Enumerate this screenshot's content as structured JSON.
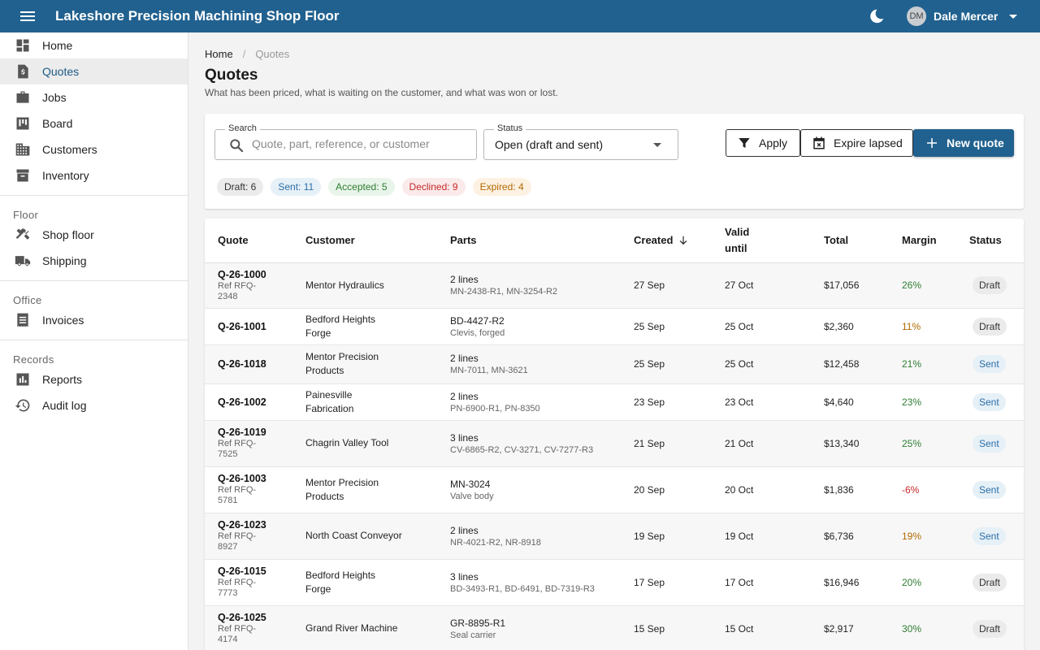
{
  "app": {
    "title": "Lakeshore Precision Machining Shop Floor"
  },
  "user": {
    "initials": "DM",
    "name": "Dale Mercer"
  },
  "sidebar": {
    "main_items": [
      {
        "label": "Home",
        "icon": "dashboard-icon"
      },
      {
        "label": "Quotes",
        "icon": "quote-document-icon",
        "active": true
      },
      {
        "label": "Jobs",
        "icon": "briefcase-icon"
      },
      {
        "label": "Board",
        "icon": "kanban-board-icon"
      },
      {
        "label": "Customers",
        "icon": "building-icon"
      },
      {
        "label": "Inventory",
        "icon": "archive-box-icon"
      }
    ],
    "sections": [
      {
        "title": "Floor",
        "items": [
          {
            "label": "Shop floor",
            "icon": "tools-icon"
          },
          {
            "label": "Shipping",
            "icon": "truck-icon"
          }
        ]
      },
      {
        "title": "Office",
        "items": [
          {
            "label": "Invoices",
            "icon": "receipt-icon"
          }
        ]
      },
      {
        "title": "Records",
        "items": [
          {
            "label": "Reports",
            "icon": "bar-chart-icon"
          },
          {
            "label": "Audit log",
            "icon": "history-icon"
          }
        ]
      }
    ]
  },
  "breadcrumb": {
    "home": "Home",
    "separator": "/",
    "current": "Quotes"
  },
  "page": {
    "title": "Quotes",
    "subtitle": "What has been priced, what is waiting on the customer, and what was won or lost."
  },
  "filters": {
    "search_label": "Search",
    "search_placeholder": "Quote, part, reference, or customer",
    "search_value": "",
    "status_label": "Status",
    "status_value": "Open (draft and sent)",
    "apply_label": "Apply",
    "expire_label": "Expire lapsed",
    "new_label": "New quote"
  },
  "chips": [
    {
      "label": "Draft: 6",
      "bg": "#ebebeb",
      "color": "#333333"
    },
    {
      "label": "Sent: 11",
      "bg": "#e6f0f7",
      "color": "#2b6fa8"
    },
    {
      "label": "Accepted: 5",
      "bg": "#e9f5ea",
      "color": "#2e7d32"
    },
    {
      "label": "Declined: 9",
      "bg": "#fbeaea",
      "color": "#c62828"
    },
    {
      "label": "Expired: 4",
      "bg": "#fdf1e2",
      "color": "#b26a00"
    }
  ],
  "table": {
    "columns": [
      "Quote",
      "Customer",
      "Parts",
      "Created",
      "Valid until",
      "Total",
      "Margin",
      "Status"
    ],
    "rows": [
      {
        "quote": "Q-26-1000",
        "ref": "Ref RFQ-2348",
        "customer": "Mentor Hydraulics",
        "parts": "2 lines",
        "parts_sub": "MN-2438-R1, MN-3254-R2",
        "created": "27 Sep",
        "valid": "27 Oct",
        "total": "$17,056",
        "margin": "26%",
        "margin_color": "#2e7d32",
        "status": "Draft"
      },
      {
        "quote": "Q-26-1001",
        "ref": "",
        "customer": "Bedford Heights Forge",
        "parts": "BD-4427-R2",
        "parts_sub": "Clevis, forged",
        "created": "25 Sep",
        "valid": "25 Oct",
        "total": "$2,360",
        "margin": "11%",
        "margin_color": "#b26a00",
        "status": "Draft"
      },
      {
        "quote": "Q-26-1018",
        "ref": "",
        "customer": "Mentor Precision Products",
        "parts": "2 lines",
        "parts_sub": "MN-7011, MN-3621",
        "created": "25 Sep",
        "valid": "25 Oct",
        "total": "$12,458",
        "margin": "21%",
        "margin_color": "#2e7d32",
        "status": "Sent"
      },
      {
        "quote": "Q-26-1002",
        "ref": "",
        "customer": "Painesville Fabrication",
        "parts": "2 lines",
        "parts_sub": "PN-6900-R1, PN-8350",
        "created": "23 Sep",
        "valid": "23 Oct",
        "total": "$4,640",
        "margin": "23%",
        "margin_color": "#2e7d32",
        "status": "Sent"
      },
      {
        "quote": "Q-26-1019",
        "ref": "Ref RFQ-7525",
        "customer": "Chagrin Valley Tool",
        "parts": "3 lines",
        "parts_sub": "CV-6865-R2, CV-3271, CV-7277-R3",
        "created": "21 Sep",
        "valid": "21 Oct",
        "total": "$13,340",
        "margin": "25%",
        "margin_color": "#2e7d32",
        "status": "Sent"
      },
      {
        "quote": "Q-26-1003",
        "ref": "Ref RFQ-5781",
        "customer": "Mentor Precision Products",
        "parts": "MN-3024",
        "parts_sub": "Valve body",
        "created": "20 Sep",
        "valid": "20 Oct",
        "total": "$1,836",
        "margin": "-6%",
        "margin_color": "#c62828",
        "status": "Sent"
      },
      {
        "quote": "Q-26-1023",
        "ref": "Ref RFQ-8927",
        "customer": "North Coast Conveyor",
        "parts": "2 lines",
        "parts_sub": "NR-4021-R2, NR-8918",
        "created": "19 Sep",
        "valid": "19 Oct",
        "total": "$6,736",
        "margin": "19%",
        "margin_color": "#b26a00",
        "status": "Sent"
      },
      {
        "quote": "Q-26-1015",
        "ref": "Ref RFQ-7773",
        "customer": "Bedford Heights Forge",
        "parts": "3 lines",
        "parts_sub": "BD-3493-R1, BD-6491, BD-7319-R3",
        "created": "17 Sep",
        "valid": "17 Oct",
        "total": "$16,946",
        "margin": "20%",
        "margin_color": "#2e7d32",
        "status": "Draft"
      },
      {
        "quote": "Q-26-1025",
        "ref": "Ref RFQ-4174",
        "customer": "Grand River Machine",
        "parts": "GR-8895-R1",
        "parts_sub": "Seal carrier",
        "created": "15 Sep",
        "valid": "15 Oct",
        "total": "$2,917",
        "margin": "30%",
        "margin_color": "#2e7d32",
        "status": "Draft"
      }
    ]
  },
  "colors": {
    "topbar": "#21618f",
    "accent": "#21618f"
  }
}
